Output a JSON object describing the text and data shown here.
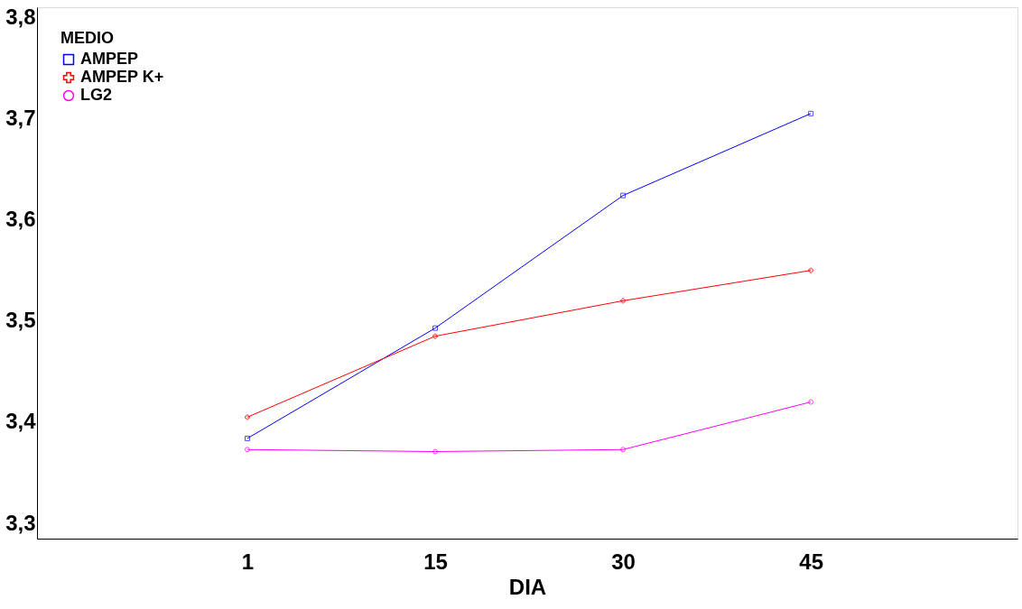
{
  "chart_data": {
    "type": "line",
    "xlabel": "DIA",
    "legend_title": "MEDIO",
    "categories": [
      "1",
      "15",
      "30",
      "45"
    ],
    "series": [
      {
        "name": "AMPEP",
        "color": "#0000ff",
        "marker": "square",
        "values": [
          3.384,
          3.493,
          3.624,
          3.705
        ]
      },
      {
        "name": "AMPEP K+",
        "color": "#ff0000",
        "marker": "cross",
        "values": [
          3.405,
          3.485,
          3.52,
          3.55
        ]
      },
      {
        "name": "LG2",
        "color": "#ff00ff",
        "marker": "circle",
        "values": [
          3.373,
          3.371,
          3.373,
          3.42
        ]
      }
    ],
    "ylim": [
      3.285,
      3.81
    ],
    "yticks": [
      {
        "value": 3.3,
        "label": "3,3"
      },
      {
        "value": 3.4,
        "label": "3,4"
      },
      {
        "value": 3.5,
        "label": "3,5"
      },
      {
        "value": 3.6,
        "label": "3,6"
      },
      {
        "value": 3.7,
        "label": "3,7"
      },
      {
        "value": 3.8,
        "label": "3,8"
      }
    ],
    "grid": false,
    "legend": "top left",
    "line_style": "solid"
  }
}
